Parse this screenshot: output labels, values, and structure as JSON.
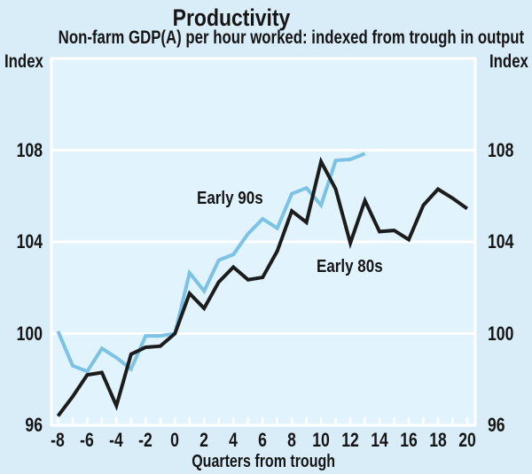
{
  "header": {
    "title": "Productivity",
    "subtitle": "Non-farm GDP(A) per hour worked: indexed from trough in output"
  },
  "axes": {
    "left_unit": "Index",
    "right_unit": "Index",
    "x_title": "Quarters from trough"
  },
  "colors": {
    "background": "#d9edf8",
    "plot_background": "#e1f3fc",
    "grid": "#ffffff",
    "frame": "#ffffff",
    "text": "#151515",
    "early_90s_line": "#7cc2e5",
    "early_80s_line": "#1c1c1c"
  },
  "chart_data": {
    "type": "line",
    "title": "Productivity",
    "subtitle": "Non-farm GDP(A) per hour worked: indexed from trough in output",
    "xlabel": "Quarters from trough",
    "ylabel": "Index",
    "ylabel_right": "Index",
    "grid": "horizontal white gridlines on light blue panel",
    "legend_position": "inline text annotations",
    "xlim": [
      -8.45,
      20.55
    ],
    "ylim": [
      96,
      112
    ],
    "yticks": [
      96,
      100,
      104,
      108
    ],
    "xticks_labeled": [
      -8,
      -6,
      -4,
      -2,
      0,
      2,
      4,
      6,
      8,
      10,
      12,
      14,
      16,
      18,
      20
    ],
    "xticks_minor_step": 1,
    "x": [
      -8,
      -7,
      -6,
      -5,
      -4,
      -3,
      -2,
      -1,
      0,
      1,
      2,
      3,
      4,
      5,
      6,
      7,
      8,
      9,
      10,
      11,
      12,
      13,
      14,
      15,
      16,
      17,
      18,
      19,
      20
    ],
    "series": [
      {
        "name": "Early 90s",
        "color": "#7cc2e5",
        "values": [
          100.1,
          98.6,
          98.35,
          99.35,
          98.95,
          98.45,
          99.9,
          99.9,
          100.0,
          102.65,
          101.85,
          103.2,
          103.45,
          104.35,
          105.0,
          104.6,
          106.1,
          106.35,
          105.6,
          107.55,
          107.6,
          107.85
        ]
      },
      {
        "name": "Early 80s",
        "color": "#1c1c1c",
        "values": [
          96.4,
          97.25,
          98.2,
          98.3,
          96.85,
          99.1,
          99.4,
          99.45,
          100.0,
          101.75,
          101.1,
          102.25,
          102.9,
          102.35,
          102.45,
          103.6,
          105.35,
          104.85,
          107.5,
          106.3,
          103.95,
          105.8,
          104.45,
          104.5,
          104.1,
          105.6,
          106.3,
          105.9,
          105.45
        ]
      }
    ],
    "annotations": [
      {
        "text": "Early 90s",
        "x": 1.5,
        "y": 106.3
      },
      {
        "text": "Early 80s",
        "x": 9.69,
        "y": 103.34
      }
    ]
  }
}
